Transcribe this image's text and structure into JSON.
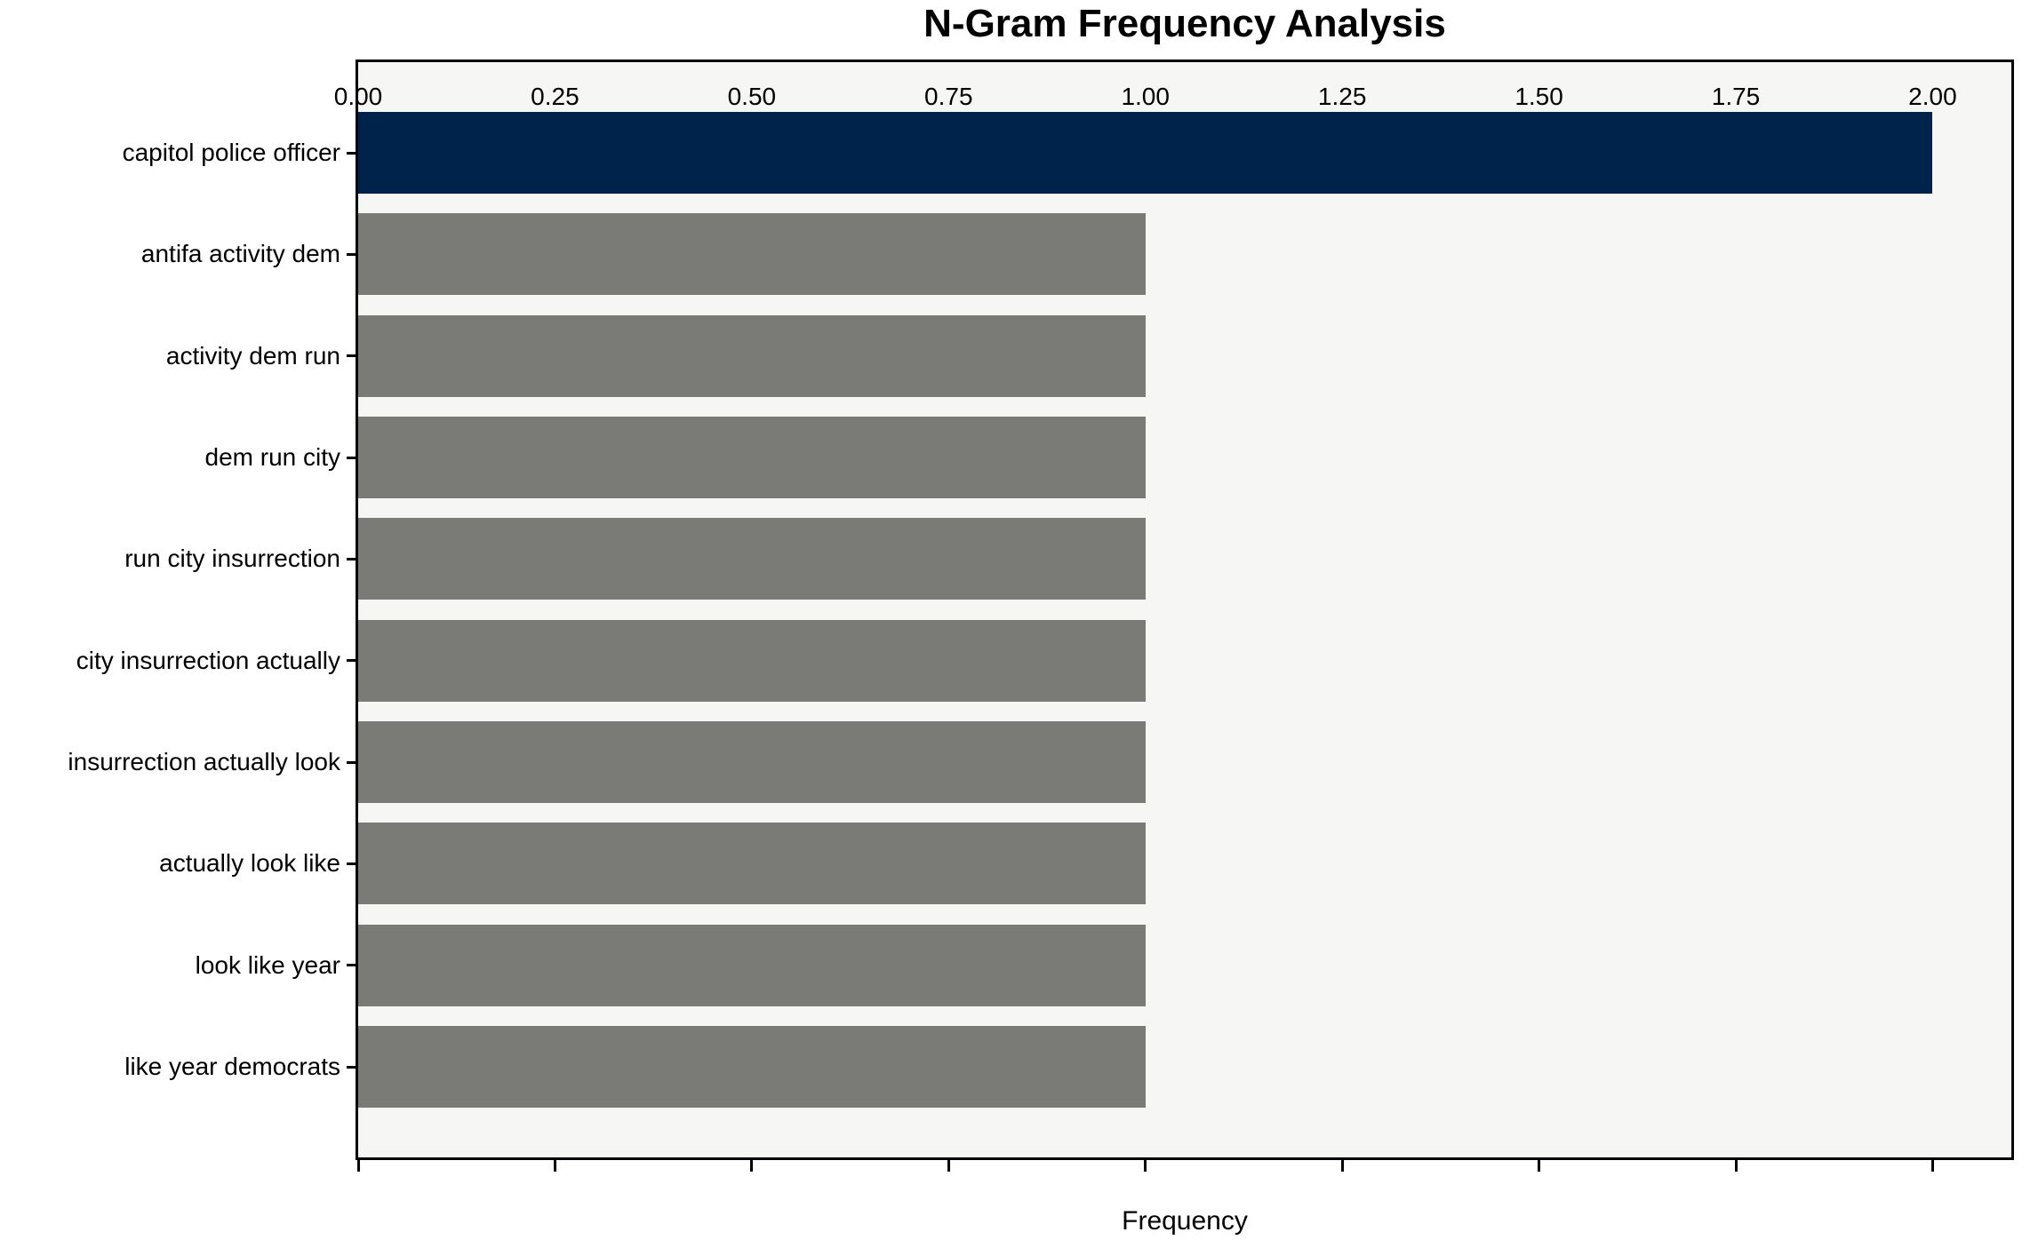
{
  "chart_data": {
    "type": "bar",
    "orientation": "horizontal",
    "title": "N-Gram Frequency Analysis",
    "xlabel": "Frequency",
    "ylabel": "",
    "categories": [
      "capitol police officer",
      "antifa activity dem",
      "activity dem run",
      "dem run city",
      "run city insurrection",
      "city insurrection actually",
      "insurrection actually look",
      "actually look like",
      "look like year",
      "like year democrats"
    ],
    "values": [
      2.0,
      1.0,
      1.0,
      1.0,
      1.0,
      1.0,
      1.0,
      1.0,
      1.0,
      1.0
    ],
    "bar_colors": [
      "#00234b",
      "#7a7a76",
      "#7a7a76",
      "#7a7a76",
      "#7a7a76",
      "#7a7a76",
      "#7a7a76",
      "#7a7a76",
      "#7a7a76",
      "#7a7a76"
    ],
    "colors": {
      "highlight": "#00234b",
      "default": "#7a7a76",
      "plot_background": "#f6f6f5",
      "spine": "#000000",
      "text": "#000000"
    },
    "xlim": [
      0,
      2.1
    ],
    "xticks": [
      0.0,
      0.25,
      0.5,
      0.75,
      1.0,
      1.25,
      1.5,
      1.75,
      2.0
    ],
    "xtick_labels": [
      "0.00",
      "0.25",
      "0.50",
      "0.75",
      "1.00",
      "1.25",
      "1.50",
      "1.75",
      "2.00"
    ],
    "grid": false,
    "legend": null
  }
}
